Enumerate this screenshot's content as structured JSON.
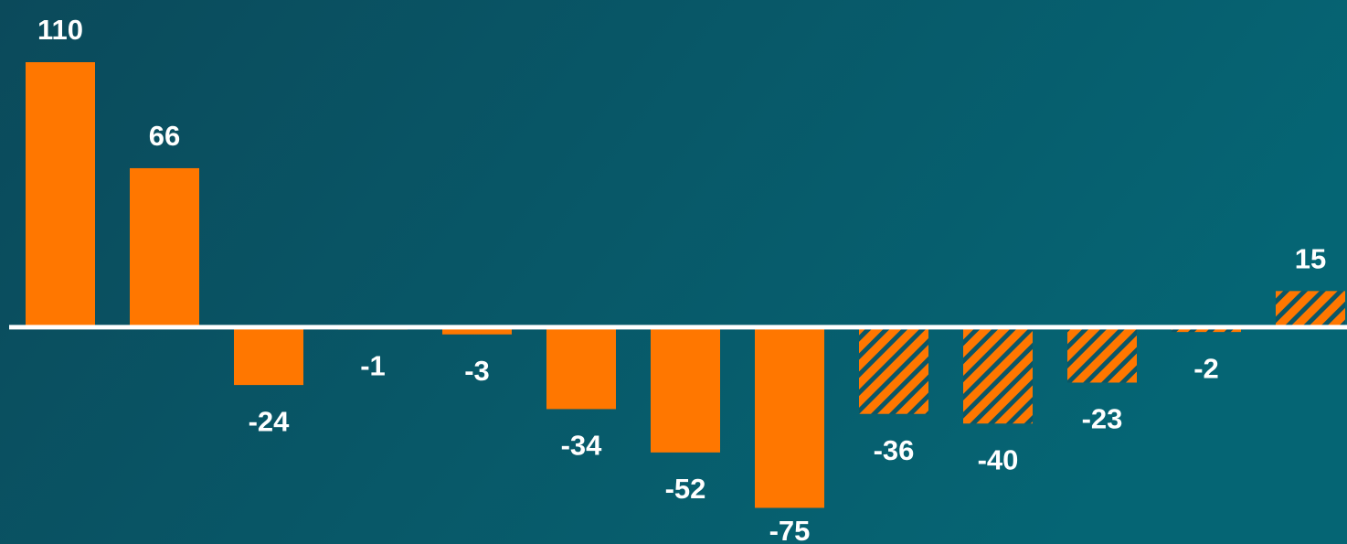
{
  "chart_data": {
    "type": "bar",
    "values": [
      110,
      66,
      -24,
      -1,
      -3,
      -34,
      -52,
      -75,
      -36,
      -40,
      -23,
      -2,
      15
    ],
    "styles": [
      "solid",
      "solid",
      "solid",
      "solid",
      "solid",
      "solid",
      "solid",
      "solid",
      "hatched",
      "hatched",
      "hatched",
      "hatched",
      "hatched"
    ],
    "color": "#ff7700",
    "ylim": [
      -90,
      125
    ]
  }
}
